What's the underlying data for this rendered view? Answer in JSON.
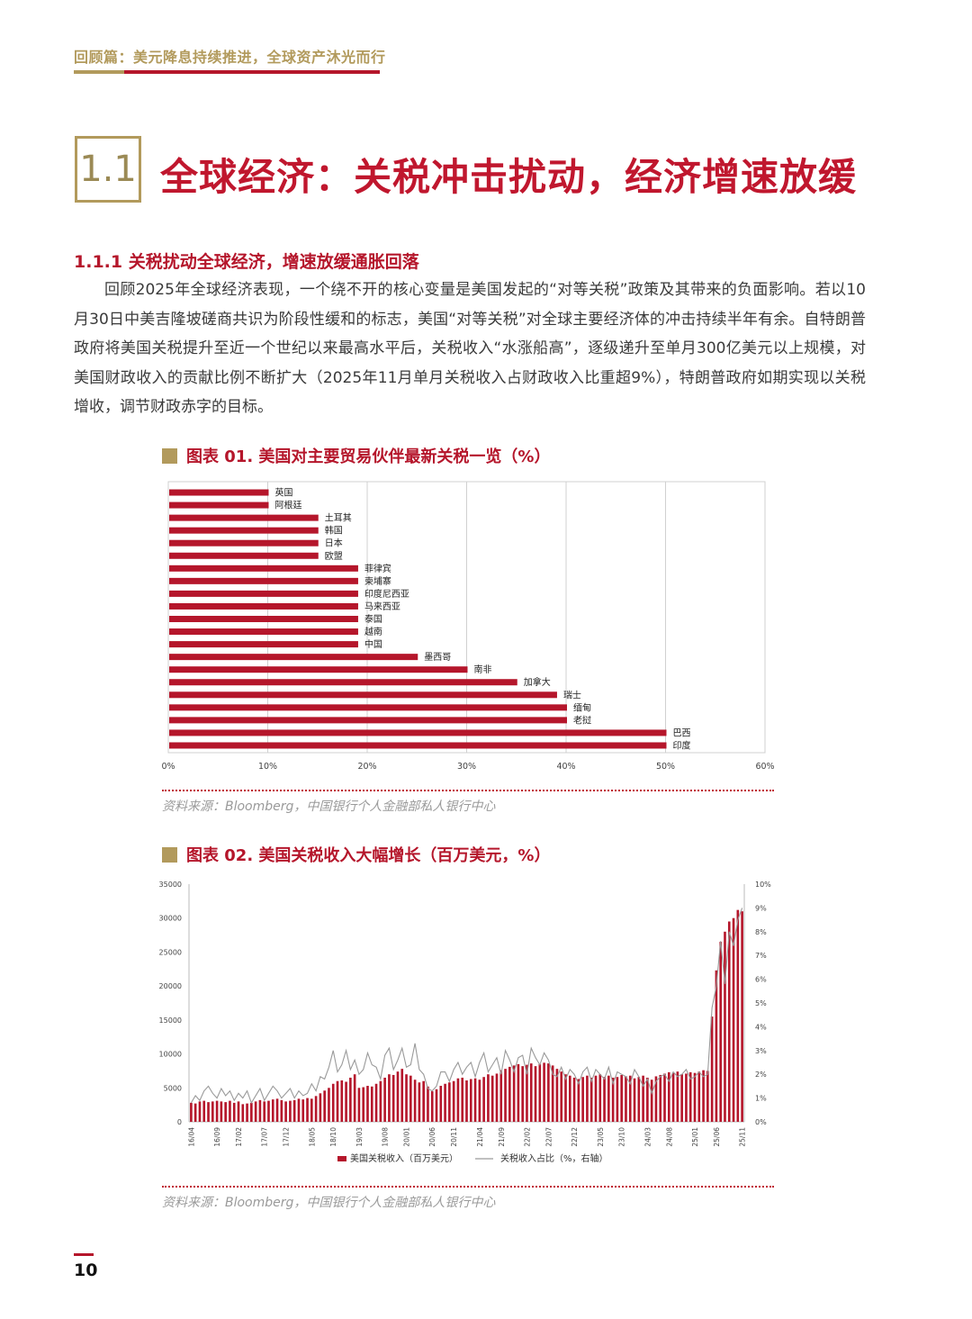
{
  "header": {
    "title": "回顾篇：美元降息持续推进，全球资产沐光而行"
  },
  "section": {
    "number": "1.1",
    "title": "全球经济：关税冲击扰动，经济增速放缓"
  },
  "subsection": {
    "title": "1.1.1 关税扰动全球经济，增速放缓通胀回落"
  },
  "paragraph": "回顾2025年全球经济表现，一个绕不开的核心变量是美国发起的“对等关税”政策及其带来的负面影响。若以10月30日中美吉隆坡磋商共识为阶段性缓和的标志，美国“对等关税”对全球主要经济体的冲击持续半年有余。自特朗普政府将美国关税提升至近一个世纪以来最高水平后，关税收入“水涨船高”，逐级递升至单月300亿美元以上规模，对美国财政收入的贡献比例不断扩大（2025年11月单月关税收入占财政收入比重超9%），特朗普政府如期实现以关税增收，调节财政赤字的目标。",
  "figure1": {
    "title": "图表 01. 美国对主要贸易伙伴最新关税一览（%）",
    "source": "资料来源：Bloomberg，中国银行个人金融部私人银行中心"
  },
  "figure2": {
    "title": "图表 02. 美国关税收入大幅增长（百万美元，%）",
    "source": "资料来源：Bloomberg，中国银行个人金融部私人银行中心"
  },
  "page_number": "10",
  "colors": {
    "accent_red": "#b5162b",
    "gold": "#b29a5c",
    "line_gray": "#9a9a9a"
  },
  "chart_data": [
    {
      "type": "bar",
      "orientation": "horizontal",
      "categories": [
        "英国",
        "阿根廷",
        "土耳其",
        "韩国",
        "日本",
        "欧盟",
        "菲律宾",
        "柬埔寨",
        "印度尼西亚",
        "马来西亚",
        "泰国",
        "越南",
        "中国",
        "墨西哥",
        "南非",
        "加拿大",
        "瑞士",
        "缅甸",
        "老挝",
        "巴西",
        "印度"
      ],
      "values": [
        10,
        10,
        15,
        15,
        15,
        15,
        19,
        19,
        19,
        19,
        19,
        19,
        19,
        25,
        30,
        35,
        39,
        40,
        40,
        50,
        50
      ],
      "x_ticks": [
        "0%",
        "10%",
        "20%",
        "30%",
        "40%",
        "50%",
        "60%"
      ],
      "xlim": [
        0,
        60
      ],
      "grid": "vertical"
    },
    {
      "type": "bar+line",
      "x_ticks": [
        "16/04",
        "16/09",
        "17/02",
        "17/07",
        "17/12",
        "18/05",
        "18/10",
        "19/03",
        "19/08",
        "20/01",
        "20/06",
        "20/11",
        "21/04",
        "21/09",
        "22/02",
        "22/07",
        "22/12",
        "23/05",
        "23/10",
        "24/03",
        "24/08",
        "25/01",
        "25/06",
        "25/11"
      ],
      "y_left_ticks": [
        "0",
        "5000",
        "10000",
        "15000",
        "20000",
        "25000",
        "30000",
        "35000"
      ],
      "y_left_lim": [
        0,
        35000
      ],
      "y_right_ticks": [
        "0%",
        "1%",
        "2%",
        "3%",
        "4%",
        "5%",
        "6%",
        "7%",
        "8%",
        "9%",
        "10%"
      ],
      "y_right_lim": [
        0,
        10
      ],
      "series": [
        {
          "name": "美国关税收入（百万美元）",
          "kind": "bar",
          "color": "#b5162b",
          "values": [
            2800,
            2700,
            3000,
            3100,
            2900,
            3000,
            3100,
            3000,
            2900,
            3100,
            2800,
            3000,
            2600,
            2700,
            2800,
            3000,
            3200,
            3000,
            3100,
            3300,
            3400,
            3200,
            3000,
            3100,
            3200,
            3400,
            3300,
            3500,
            3400,
            3800,
            4200,
            4600,
            5000,
            5600,
            6000,
            6100,
            5900,
            6500,
            7000,
            5000,
            5100,
            5300,
            5200,
            5600,
            6000,
            6500,
            7000,
            6900,
            7400,
            7800,
            7000,
            6800,
            6200,
            5800,
            6000,
            5200,
            4500,
            4800,
            5300,
            5600,
            5800,
            6000,
            6400,
            6500,
            6100,
            6300,
            6400,
            6200,
            6600,
            7000,
            6800,
            7100,
            7600,
            7800,
            8100,
            8300,
            8500,
            8200,
            8400,
            8600,
            8200,
            8500,
            8700,
            8600,
            8300,
            7800,
            7400,
            7000,
            6800,
            6500,
            6300,
            6600,
            6800,
            6500,
            6800,
            7000,
            6600,
            6800,
            6500,
            6600,
            6900,
            6700,
            6800,
            6400,
            6600,
            6800,
            6500,
            6200,
            6700,
            6900,
            7100,
            7300,
            7200,
            7400,
            7000,
            7100,
            7300,
            7200,
            7400,
            7600,
            7500,
            15500,
            22300,
            26500,
            28000,
            29500,
            30000,
            31200,
            31000
          ],
          "max_label": 31000
        },
        {
          "name": "关税收入占比（%，右轴）",
          "kind": "line",
          "color": "#9a9a9a",
          "axis": "right",
          "values": [
            0.8,
            1.1,
            0.9,
            1.3,
            1.5,
            1.2,
            1.0,
            1.4,
            1.1,
            1.3,
            0.9,
            1.2,
            1.0,
            1.3,
            0.8,
            1.1,
            1.4,
            0.9,
            1.2,
            1.5,
            1.3,
            1.0,
            1.2,
            1.4,
            1.0,
            1.3,
            1.1,
            1.2,
            1.6,
            1.3,
            1.9,
            1.8,
            2.3,
            3.0,
            2.1,
            2.4,
            3.0,
            2.2,
            2.6,
            2.0,
            2.2,
            2.9,
            2.4,
            2.3,
            1.8,
            2.8,
            3.1,
            2.2,
            2.6,
            3.1,
            2.3,
            2.4,
            3.3,
            2.2,
            2.0,
            1.4,
            1.3,
            1.5,
            2.1,
            2.1,
            1.7,
            2.2,
            2.5,
            2.0,
            2.3,
            2.5,
            1.9,
            2.5,
            2.9,
            2.1,
            2.4,
            2.7,
            2.0,
            3.0,
            2.6,
            2.1,
            2.7,
            2.8,
            2.0,
            3.1,
            2.7,
            2.4,
            2.9,
            2.6,
            2.0,
            1.9,
            2.3,
            1.8,
            2.2,
            2.0,
            1.6,
            2.1,
            2.3,
            1.7,
            2.2,
            2.0,
            1.8,
            2.3,
            1.6,
            2.1,
            2.0,
            1.9,
            1.6,
            2.2,
            1.9,
            1.5,
            1.8,
            1.2,
            1.7,
            1.9,
            2.0,
            1.7,
            2.1,
            1.9,
            2.0,
            2.2,
            1.8,
            1.9,
            2.1,
            1.9,
            2.0,
            4.8,
            5.7,
            7.6,
            5.8,
            8.0,
            7.4,
            8.5,
            9.0
          ]
        }
      ],
      "legend": "bottom"
    }
  ]
}
